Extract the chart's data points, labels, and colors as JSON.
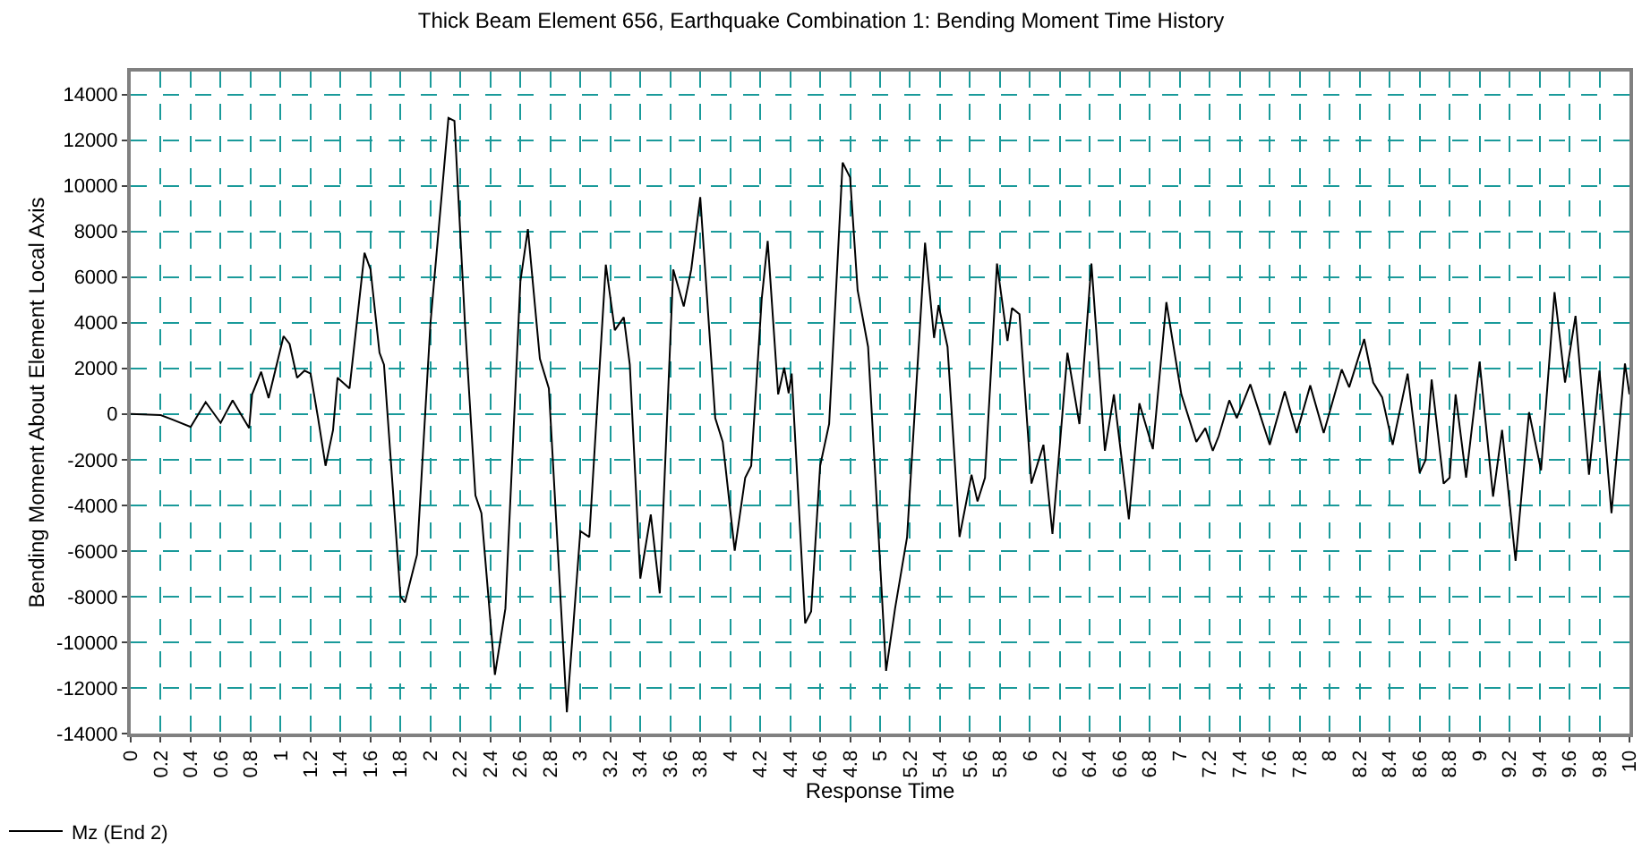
{
  "chart_data": {
    "type": "line",
    "title": "Thick Beam Element 656, Earthquake Combination 1: Bending Moment Time History",
    "xlabel": "Response Time",
    "ylabel": "Bending Moment About Element Local Axis",
    "xlim": [
      0,
      10
    ],
    "xticks": [
      0,
      0.2,
      0.4,
      0.6,
      0.8,
      1,
      1.2,
      1.4,
      1.6,
      1.8,
      2,
      2.2,
      2.4,
      2.6,
      2.8,
      3,
      3.2,
      3.4,
      3.6,
      3.8,
      4,
      4.2,
      4.4,
      4.6,
      4.8,
      5,
      5.2,
      5.4,
      5.6,
      5.8,
      6,
      6.2,
      6.4,
      6.6,
      6.8,
      7,
      7.2,
      7.4,
      7.6,
      7.8,
      8,
      8.2,
      8.4,
      8.6,
      8.8,
      9,
      9.2,
      9.4,
      9.6,
      9.8,
      10
    ],
    "ylim": [
      -14000,
      15000
    ],
    "yticks": [
      -14000,
      -12000,
      -10000,
      -8000,
      -6000,
      -4000,
      -2000,
      0,
      2000,
      4000,
      6000,
      8000,
      10000,
      12000,
      14000
    ],
    "grid": true,
    "legend": "bottom left",
    "marker": "none",
    "line_style": "solid",
    "series": [
      {
        "name": "Mz (End 2)",
        "color": "#000000",
        "x": [
          0,
          0.2,
          0.28,
          0.4,
          0.5,
          0.6,
          0.68,
          0.79,
          0.81,
          0.87,
          0.92,
          1.02,
          1.06,
          1.11,
          1.16,
          1.2,
          1.25,
          1.3,
          1.35,
          1.38,
          1.46,
          1.56,
          1.6,
          1.66,
          1.69,
          1.8,
          1.83,
          1.91,
          2.0,
          2.12,
          2.16,
          2.23,
          2.3,
          2.34,
          2.43,
          2.5,
          2.6,
          2.65,
          2.73,
          2.79,
          2.91,
          3.0,
          3.06,
          3.17,
          3.23,
          3.29,
          3.33,
          3.4,
          3.47,
          3.53,
          3.62,
          3.69,
          3.74,
          3.8,
          3.9,
          3.95,
          4.03,
          4.1,
          4.14,
          4.21,
          4.25,
          4.32,
          4.36,
          4.39,
          4.41,
          4.5,
          4.54,
          4.6,
          4.66,
          4.75,
          4.8,
          4.85,
          4.92,
          5.04,
          5.1,
          5.18,
          5.3,
          5.36,
          5.39,
          5.45,
          5.53,
          5.61,
          5.65,
          5.7,
          5.78,
          5.85,
          5.88,
          5.93,
          6.01,
          6.09,
          6.15,
          6.25,
          6.33,
          6.41,
          6.5,
          6.56,
          6.66,
          6.73,
          6.82,
          6.91,
          7.01,
          7.11,
          7.17,
          7.22,
          7.26,
          7.33,
          7.38,
          7.47,
          7.6,
          7.7,
          7.78,
          7.87,
          7.96,
          8.08,
          8.13,
          8.23,
          8.29,
          8.35,
          8.42,
          8.52,
          8.6,
          8.64,
          8.68,
          8.76,
          8.8,
          8.84,
          8.91,
          9.0,
          9.09,
          9.15,
          9.24,
          9.33,
          9.41,
          9.5,
          9.57,
          9.64,
          9.73,
          9.8,
          9.88,
          9.97,
          10
        ],
        "values": [
          0,
          -50,
          -250,
          -570,
          520,
          -390,
          600,
          -620,
          860,
          1850,
          700,
          3410,
          3070,
          1590,
          1900,
          1770,
          -180,
          -2270,
          -700,
          1590,
          1120,
          7060,
          6330,
          2680,
          2160,
          -8000,
          -8250,
          -6170,
          3980,
          12970,
          12840,
          3980,
          -3570,
          -4350,
          -11430,
          -8520,
          5810,
          8100,
          2420,
          1120,
          -13070,
          -5130,
          -5390,
          6540,
          3670,
          4240,
          2160,
          -7210,
          -4400,
          -7860,
          6330,
          4710,
          6330,
          9500,
          -180,
          -1220,
          -5990,
          -2790,
          -2270,
          5030,
          7580,
          860,
          2030,
          910,
          1770,
          -9170,
          -8650,
          -2270,
          -440,
          11010,
          10360,
          5420,
          2940,
          -11250,
          -8520,
          -5390,
          7500,
          3330,
          4770,
          2940,
          -5390,
          -2660,
          -3830,
          -2790,
          6590,
          3200,
          4640,
          4370,
          -3050,
          -1350,
          -5260,
          2680,
          -440,
          6590,
          -1610,
          860,
          -4610,
          470,
          -1540,
          4900,
          860,
          -1220,
          -620,
          -1610,
          -960,
          600,
          -180,
          1300,
          -1350,
          990,
          -830,
          1250,
          -830,
          1950,
          1170,
          3280,
          1380,
          730,
          -1350,
          1770,
          -2580,
          -2010,
          1510,
          -3050,
          -2790,
          860,
          -2790,
          2290,
          -3620,
          -700,
          -6430,
          80,
          -2470,
          5340,
          1380,
          4300,
          -2660,
          1900,
          -4350,
          2210,
          860
        ]
      }
    ]
  }
}
